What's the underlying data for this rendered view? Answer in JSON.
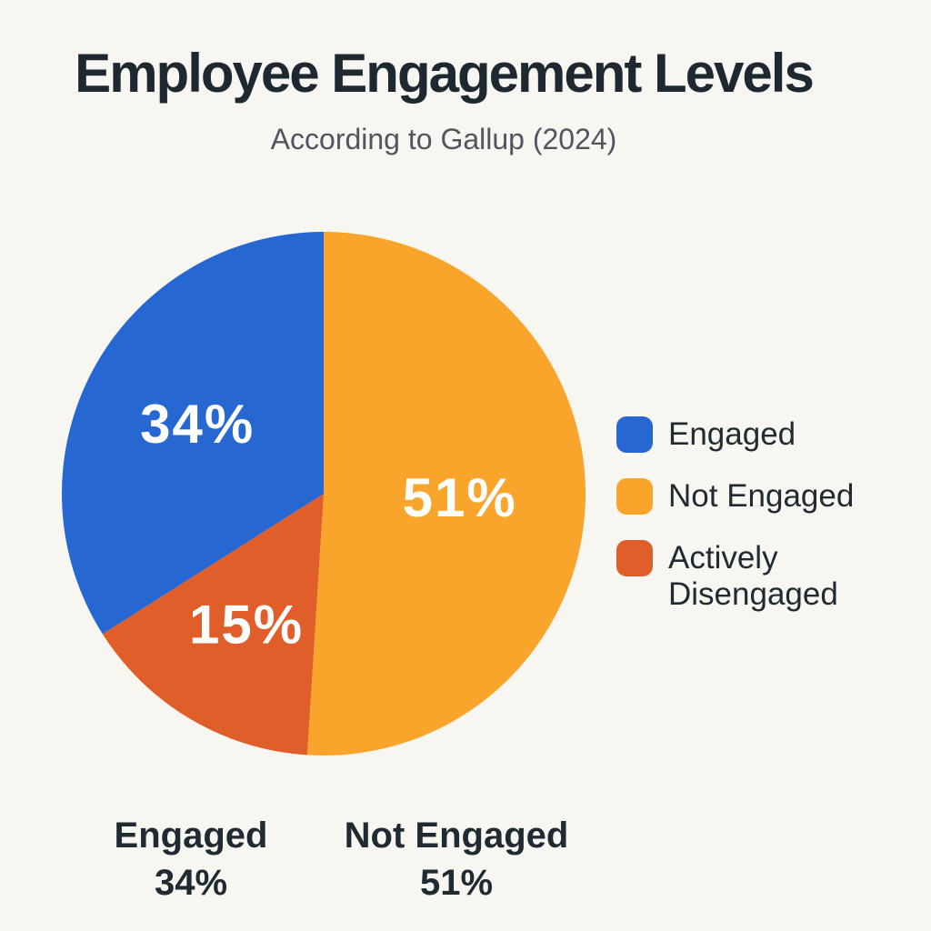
{
  "header": {
    "title": "Employee Engagement Levels",
    "subtitle": "According to Gallup (2024)"
  },
  "colors": {
    "background": "#f8f6f1",
    "title_text": "#1d2830",
    "subtitle_text": "#4e575f",
    "body_text": "#1f2a33",
    "percent_label_text": "#ffffff",
    "engaged": "#2767d2",
    "not_engaged": "#f9a52b",
    "actively_disengaged": "#e05e2a"
  },
  "chart_data": {
    "type": "pie",
    "title": "Employee Engagement Levels",
    "subtitle": "According to Gallup (2024)",
    "unit": "%",
    "direction": "clockwise",
    "start_angle_deg": -90,
    "segments": [
      {
        "label": "Not Engaged",
        "value": 51,
        "display_label": "51%",
        "color": "#f9a52b"
      },
      {
        "label": "Actively Disengaged",
        "value": 15,
        "display_label": "15%",
        "color": "#e05e2a"
      },
      {
        "label": "Engaged",
        "value": 34,
        "display_label": "34%",
        "color": "#2767d2"
      }
    ],
    "legend_position": "right",
    "legend": [
      {
        "label": "Engaged",
        "color": "#2767d2"
      },
      {
        "label": "Not Engaged",
        "color": "#f9a52b"
      },
      {
        "label": "Actively Disengaged",
        "color": "#e05e2a"
      }
    ]
  },
  "footer": {
    "items": [
      {
        "label": "Engaged",
        "value": "34%"
      },
      {
        "label": "Not Engaged",
        "value": "51%"
      }
    ]
  }
}
